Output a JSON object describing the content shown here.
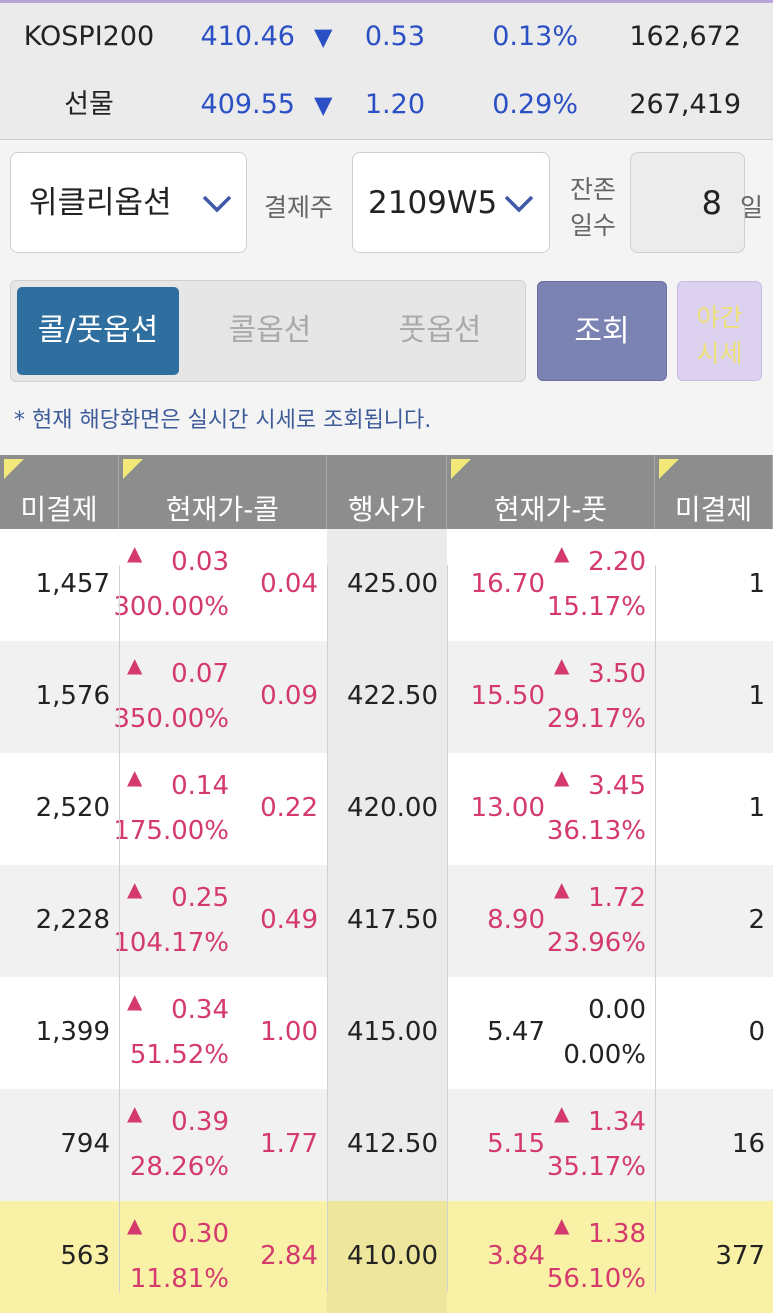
{
  "indices": [
    {
      "name": "KOSPI200",
      "price": "410.46",
      "arrow": "▼",
      "change": "0.53",
      "rate": "0.13%",
      "volume": "162,672"
    },
    {
      "name": "선물",
      "price": "409.55",
      "arrow": "▼",
      "change": "1.20",
      "rate": "0.29%",
      "volume": "267,419"
    }
  ],
  "controls": {
    "product": "위클리옵션",
    "settle_label": "결제주",
    "settle": "2109W5",
    "remain_label": [
      "잔존",
      "일수"
    ],
    "remain_days": "8",
    "remain_unit": "일"
  },
  "tabs": [
    "콜/풋옵션",
    "콜옵션",
    "풋옵션"
  ],
  "query_button": "조회",
  "night_button": [
    "야간",
    "시세"
  ],
  "notice": "* 현재 해당화면은 실시간 시세로 조회됩니다.",
  "table": {
    "headers": [
      "미결제",
      "현재가-콜",
      "행사가",
      "현재가-풋",
      "미결제"
    ],
    "highlight_row": 6,
    "rows": [
      {
        "call_oi": "1,457",
        "call_arrow": "▲",
        "call_change": "0.03",
        "call_rate": "300.00%",
        "call_price": "0.04",
        "strike": "425.00",
        "put_price": "16.70",
        "put_arrow": "▲",
        "put_change": "2.20",
        "put_rate": "15.17%",
        "put_oi": "1"
      },
      {
        "call_oi": "1,576",
        "call_arrow": "▲",
        "call_change": "0.07",
        "call_rate": "350.00%",
        "call_price": "0.09",
        "strike": "422.50",
        "put_price": "15.50",
        "put_arrow": "▲",
        "put_change": "3.50",
        "put_rate": "29.17%",
        "put_oi": "1"
      },
      {
        "call_oi": "2,520",
        "call_arrow": "▲",
        "call_change": "0.14",
        "call_rate": "175.00%",
        "call_price": "0.22",
        "strike": "420.00",
        "put_price": "13.00",
        "put_arrow": "▲",
        "put_change": "3.45",
        "put_rate": "36.13%",
        "put_oi": "1"
      },
      {
        "call_oi": "2,228",
        "call_arrow": "▲",
        "call_change": "0.25",
        "call_rate": "104.17%",
        "call_price": "0.49",
        "strike": "417.50",
        "put_price": "8.90",
        "put_arrow": "▲",
        "put_change": "1.72",
        "put_rate": "23.96%",
        "put_oi": "2"
      },
      {
        "call_oi": "1,399",
        "call_arrow": "▲",
        "call_change": "0.34",
        "call_rate": "51.52%",
        "call_price": "1.00",
        "strike": "415.00",
        "put_price": "5.47",
        "put_change": "0.00",
        "put_rate": "0.00%",
        "put_oi": "0"
      },
      {
        "call_oi": "794",
        "call_arrow": "▲",
        "call_change": "0.39",
        "call_rate": "28.26%",
        "call_price": "1.77",
        "strike": "412.50",
        "put_price": "5.15",
        "put_arrow": "▲",
        "put_change": "1.34",
        "put_rate": "35.17%",
        "put_oi": "16"
      },
      {
        "call_oi": "563",
        "call_arrow": "▲",
        "call_change": "0.30",
        "call_rate": "11.81%",
        "call_price": "2.84",
        "strike": "410.00",
        "put_price": "3.84",
        "put_arrow": "▲",
        "put_change": "1.38",
        "put_rate": "56.10%",
        "put_oi": "377"
      }
    ]
  }
}
